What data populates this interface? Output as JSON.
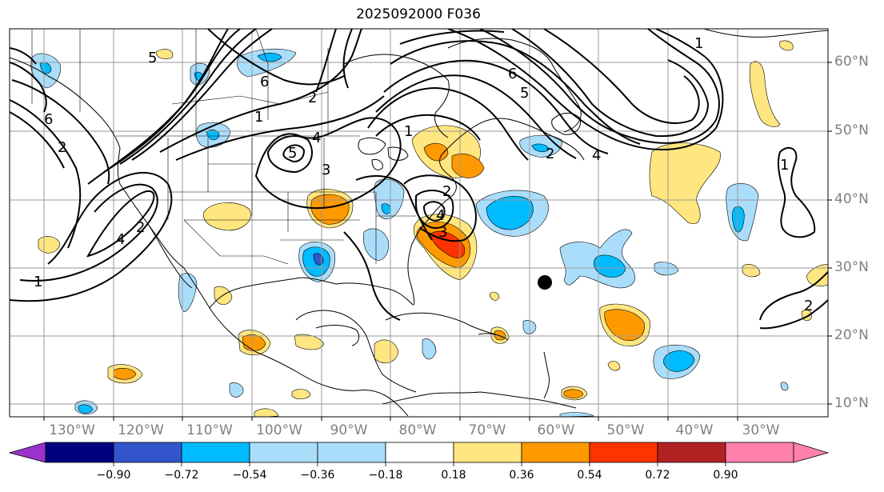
{
  "title": "2025092000 F036",
  "lat_labels": [
    "60°N",
    "50°N",
    "40°N",
    "30°N",
    "20°N",
    "10°N"
  ],
  "lon_labels": [
    "130°W",
    "120°W",
    "110°W",
    "100°W",
    "90°W",
    "80°W",
    "70°W",
    "60°W",
    "50°W",
    "40°W",
    "30°W"
  ],
  "colorbar": {
    "ticks": [
      "−0.90",
      "−0.72",
      "−0.54",
      "−0.36",
      "−0.18",
      "0.18",
      "0.36",
      "0.54",
      "0.72",
      "0.90"
    ],
    "colors": [
      "#9933cc",
      "#000080",
      "#3355cc",
      "#00bbff",
      "#aaddfa",
      "#ffffff",
      "#ffe680",
      "#ff9900",
      "#ff3300",
      "#b22222",
      "#ff80aa"
    ]
  },
  "contour_labels": [
    "1",
    "2",
    "3",
    "4",
    "5",
    "6"
  ],
  "palette": {
    "warm1": "#ffe680",
    "warm2": "#ff9900",
    "warm3": "#ff3300",
    "cool1": "#aaddfa",
    "cool2": "#00bbff",
    "cool3": "#3355cc",
    "cool4": "#9933cc",
    "grid": "#9a9a9a",
    "land": "#000000"
  },
  "marker": {
    "name": "storm-center",
    "lon": -60,
    "lat": 28
  }
}
